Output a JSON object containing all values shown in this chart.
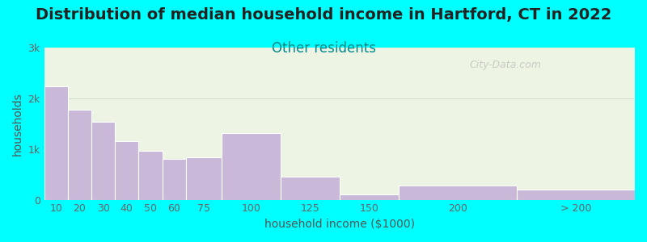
{
  "title": "Distribution of median household income in Hartford, CT in 2022",
  "subtitle": "Other residents",
  "xlabel": "household income ($1000)",
  "ylabel": "households",
  "background_color": "#00FFFF",
  "plot_bg_color": "#eef4e4",
  "bar_color": "#c9b8d8",
  "bar_edge_color": "#ffffff",
  "categories": [
    "10",
    "20",
    "30",
    "40",
    "50",
    "60",
    "75",
    "100",
    "125",
    "150",
    "200",
    "> 200"
  ],
  "values": [
    2230,
    1780,
    1530,
    1150,
    960,
    800,
    830,
    1310,
    460,
    110,
    280,
    200
  ],
  "bar_lefts": [
    0,
    10,
    20,
    30,
    40,
    50,
    60,
    75,
    100,
    125,
    150,
    200
  ],
  "bar_widths": [
    10,
    10,
    10,
    10,
    10,
    10,
    15,
    25,
    25,
    25,
    50,
    50
  ],
  "xtick_positions": [
    5,
    15,
    25,
    35,
    45,
    55,
    67.5,
    87.5,
    112.5,
    137.5,
    175,
    225
  ],
  "xtick_labels": [
    "10",
    "20",
    "30",
    "40",
    "50",
    "60",
    "75",
    "100",
    "125",
    "150",
    "200",
    "> 200"
  ],
  "yticks": [
    0,
    1000,
    2000,
    3000
  ],
  "ytick_labels": [
    "0",
    "1k",
    "2k",
    "3k"
  ],
  "ylim": [
    0,
    3000
  ],
  "xlim": [
    0,
    250
  ],
  "title_fontsize": 14,
  "subtitle_fontsize": 12,
  "axis_label_fontsize": 10,
  "tick_fontsize": 9,
  "watermark": "City-Data.com"
}
